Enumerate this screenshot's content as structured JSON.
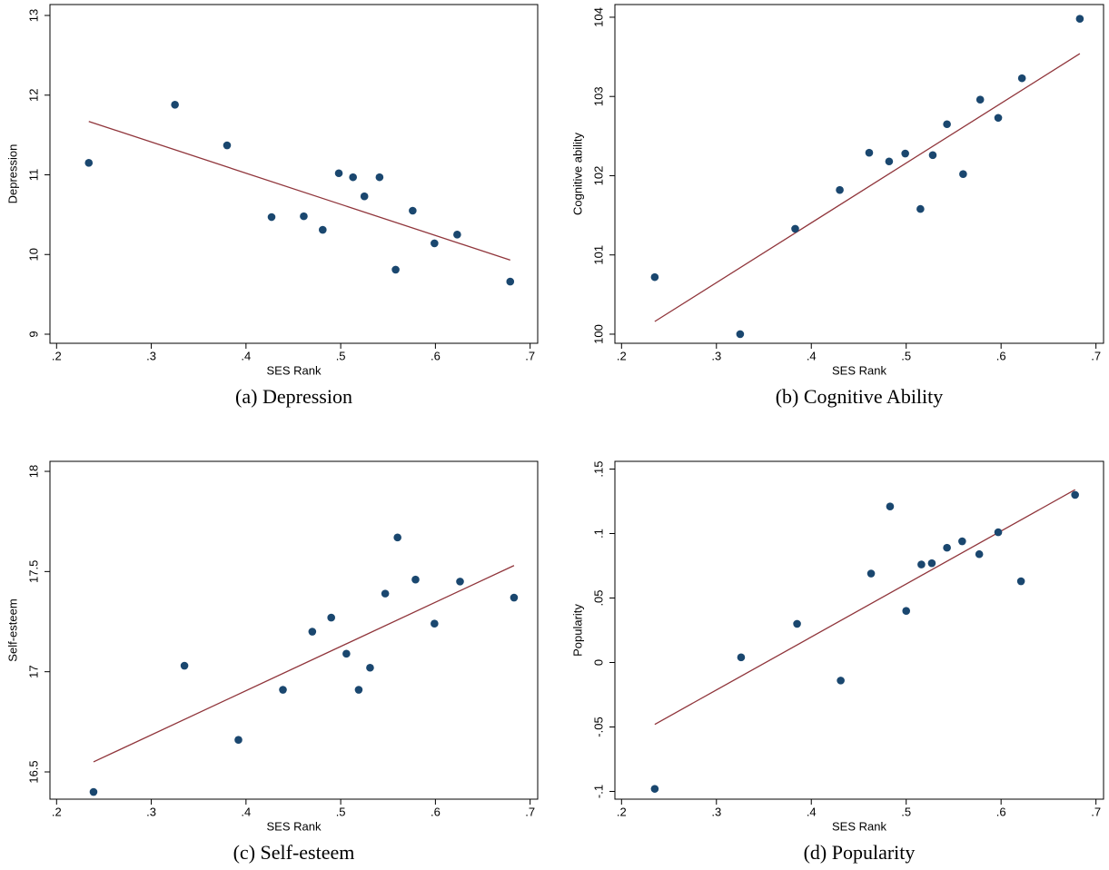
{
  "chart_data": [
    {
      "type": "scatter",
      "caption": "(a) Depression",
      "x_label": "SES Rank",
      "y_label": "Depression",
      "x": [
        0.234,
        0.325,
        0.38,
        0.427,
        0.461,
        0.481,
        0.498,
        0.513,
        0.525,
        0.541,
        0.576,
        0.558,
        0.599,
        0.623,
        0.679
      ],
      "y": [
        11.15,
        11.88,
        11.37,
        10.47,
        10.48,
        10.31,
        11.02,
        10.97,
        10.73,
        10.97,
        10.55,
        9.81,
        10.14,
        10.25,
        9.66
      ],
      "color": "#1a476f",
      "fit": {
        "x": [
          0.234,
          0.679
        ],
        "y": [
          11.67,
          9.93
        ],
        "color": "#90353b"
      },
      "xlim": [
        0.193,
        0.708
      ],
      "ylim": [
        8.886,
        13.137
      ],
      "xticks": [
        {
          "value": 0.2,
          "label": ".2"
        },
        {
          "value": 0.3,
          "label": ".3"
        },
        {
          "value": 0.4,
          "label": ".4"
        },
        {
          "value": 0.5,
          "label": ".5"
        },
        {
          "value": 0.6,
          "label": ".6"
        },
        {
          "value": 0.7,
          "label": ".7"
        }
      ],
      "yticks": [
        9,
        10,
        11,
        12,
        13
      ]
    },
    {
      "type": "scatter",
      "caption": "(b) Cognitive Ability",
      "x_label": "SES Rank",
      "y_label": "Cognitive ability",
      "x": [
        0.235,
        0.325,
        0.383,
        0.43,
        0.461,
        0.482,
        0.499,
        0.528,
        0.543,
        0.578,
        0.515,
        0.56,
        0.597,
        0.622,
        0.683
      ],
      "y": [
        100.72,
        100.0,
        101.33,
        101.82,
        102.29,
        102.18,
        102.28,
        102.26,
        102.65,
        102.96,
        101.58,
        102.02,
        102.73,
        103.23,
        103.98
      ],
      "color": "#1a476f",
      "fit": {
        "x": [
          0.235,
          0.683
        ],
        "y": [
          100.16,
          103.54
        ],
        "color": "#90353b"
      },
      "xlim": [
        0.193,
        0.708
      ],
      "ylim": [
        99.885,
        104.16
      ],
      "xticks": [
        {
          "value": 0.2,
          "label": ".2"
        },
        {
          "value": 0.3,
          "label": ".3"
        },
        {
          "value": 0.4,
          "label": ".4"
        },
        {
          "value": 0.5,
          "label": ".5"
        },
        {
          "value": 0.6,
          "label": ".6"
        },
        {
          "value": 0.7,
          "label": ".7"
        }
      ],
      "yticks": [
        100,
        101,
        102,
        103,
        104
      ]
    },
    {
      "type": "scatter",
      "caption": "(c) Self-esteem",
      "x_label": "SES Rank",
      "y_label": "Self-esteem",
      "x": [
        0.239,
        0.335,
        0.392,
        0.439,
        0.47,
        0.49,
        0.506,
        0.519,
        0.531,
        0.547,
        0.56,
        0.579,
        0.599,
        0.626,
        0.683
      ],
      "y": [
        16.4,
        17.03,
        16.66,
        16.91,
        17.2,
        17.27,
        17.09,
        16.91,
        17.02,
        17.39,
        17.67,
        17.46,
        17.24,
        17.45,
        17.37
      ],
      "color": "#1a476f",
      "fit": {
        "x": [
          0.239,
          0.683
        ],
        "y": [
          16.55,
          17.53
        ],
        "color": "#90353b"
      },
      "xlim": [
        0.193,
        0.708
      ],
      "ylim": [
        16.364,
        18.05
      ],
      "xticks": [
        {
          "value": 0.2,
          "label": ".2"
        },
        {
          "value": 0.3,
          "label": ".3"
        },
        {
          "value": 0.4,
          "label": ".4"
        },
        {
          "value": 0.5,
          "label": ".5"
        },
        {
          "value": 0.6,
          "label": ".6"
        },
        {
          "value": 0.7,
          "label": ".7"
        }
      ],
      "yticks": [
        16.5,
        17,
        17.5,
        18
      ]
    },
    {
      "type": "scatter",
      "caption": "(d) Popularity",
      "x_label": "SES Rank",
      "y_label": "Popularity",
      "x": [
        0.235,
        0.326,
        0.385,
        0.431,
        0.463,
        0.483,
        0.5,
        0.516,
        0.527,
        0.543,
        0.559,
        0.577,
        0.597,
        0.621,
        0.678
      ],
      "y": [
        -0.098,
        0.004,
        0.03,
        -0.014,
        0.069,
        0.121,
        0.04,
        0.076,
        0.077,
        0.089,
        0.094,
        0.084,
        0.101,
        0.063,
        0.13
      ],
      "color": "#1a476f",
      "fit": {
        "x": [
          0.235,
          0.678
        ],
        "y": [
          -0.048,
          0.134
        ],
        "color": "#90353b"
      },
      "xlim": [
        0.193,
        0.708
      ],
      "ylim": [
        -0.106,
        0.156
      ],
      "xticks": [
        {
          "value": 0.2,
          "label": ".2"
        },
        {
          "value": 0.3,
          "label": ".3"
        },
        {
          "value": 0.4,
          "label": ".4"
        },
        {
          "value": 0.5,
          "label": ".5"
        },
        {
          "value": 0.6,
          "label": ".6"
        },
        {
          "value": 0.7,
          "label": ".7"
        }
      ],
      "yticks": [
        {
          "value": -0.1,
          "label": "-.1"
        },
        {
          "value": -0.05,
          "label": "-.05"
        },
        0,
        {
          "value": 0.05,
          "label": ".05"
        },
        {
          "value": 0.1,
          "label": ".1"
        },
        {
          "value": 0.15,
          "label": ".15"
        }
      ]
    }
  ]
}
